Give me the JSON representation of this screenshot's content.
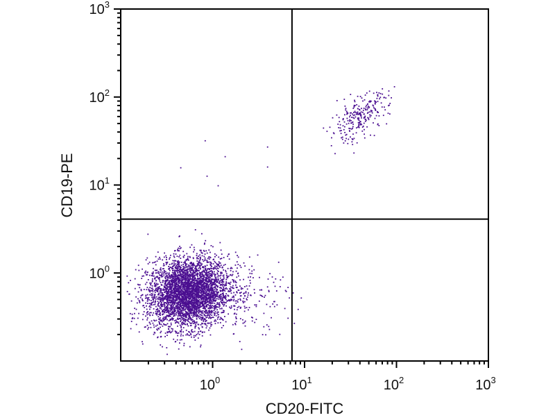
{
  "chart_data": {
    "type": "scatter",
    "title": "",
    "xlabel": "CD20-FITC",
    "ylabel": "CD19-PE",
    "xscale": "log",
    "yscale": "log",
    "xlim": [
      0.1,
      1000
    ],
    "ylim": [
      0.1,
      1000
    ],
    "grid": false,
    "point_color": "#4b0f91",
    "x_ticks": [
      {
        "value": 1,
        "base": "10",
        "exp": "0"
      },
      {
        "value": 10,
        "base": "10",
        "exp": "1"
      },
      {
        "value": 100,
        "base": "10",
        "exp": "2"
      },
      {
        "value": 1000,
        "base": "10",
        "exp": "3"
      }
    ],
    "y_ticks": [
      {
        "value": 1,
        "base": "10",
        "exp": "0"
      },
      {
        "value": 10,
        "base": "10",
        "exp": "1"
      },
      {
        "value": 100,
        "base": "10",
        "exp": "2"
      },
      {
        "value": 1000,
        "base": "10",
        "exp": "3"
      }
    ],
    "quadrant_gates": {
      "x": 7.3,
      "y": 4.1
    },
    "populations": [
      {
        "name": "CD19-/CD20- (lower-left)",
        "center": [
          0.54,
          0.59
        ],
        "log_sd": [
          0.22,
          0.2
        ],
        "correlation": 0.1,
        "count": 3800
      },
      {
        "name": "CD19-/CD20- right tail",
        "center": [
          1.8,
          0.6
        ],
        "log_sd": [
          0.3,
          0.22
        ],
        "correlation": 0.0,
        "count": 220
      },
      {
        "name": "CD19+/CD20+ (upper-right)",
        "center": [
          39,
          58
        ],
        "log_sd": [
          0.16,
          0.14
        ],
        "correlation": 0.6,
        "count": 260
      }
    ],
    "outliers": [
      [
        0.45,
        15.7
      ],
      [
        0.83,
        31.8
      ],
      [
        0.87,
        12.6
      ],
      [
        1.37,
        21
      ],
      [
        1.15,
        9.8
      ],
      [
        3.96,
        27
      ],
      [
        3.96,
        16
      ]
    ]
  }
}
